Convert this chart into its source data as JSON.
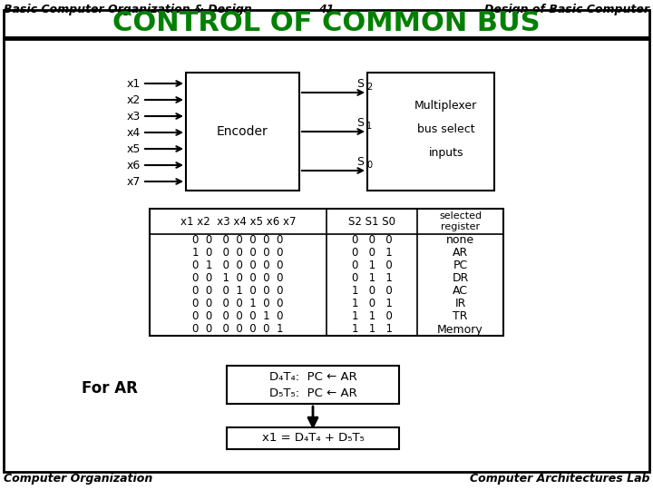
{
  "title_main": "CONTROL OF COMMON BUS",
  "header_left": "Basic Computer Organization & Design",
  "header_center": "41",
  "header_right": "Design of Basic Computer",
  "footer_left": "Computer Organization",
  "footer_right": "Computer Architectures Lab",
  "encoder_label": "Encoder",
  "mux_label1": "Multiplexer",
  "mux_label2": "bus select",
  "mux_label3": "inputs",
  "inputs": [
    "x1",
    "x2",
    "x3",
    "x4",
    "x5",
    "x6",
    "x7"
  ],
  "s_labels": [
    "S",
    "S",
    "S"
  ],
  "s_subs": [
    "2",
    "1",
    "0"
  ],
  "table_col1_header": "x1 x2  x3 x4 x5 x6 x7",
  "table_col2_header": "S2 S1 S0",
  "table_col3_header": "selected\nregister",
  "table_data_col1": [
    "0  0   0  0  0  0  0",
    "1  0   0  0  0  0  0",
    "0  1   0  0  0  0  0",
    "0  0   1  0  0  0  0",
    "0  0   0  1  0  0  0",
    "0  0   0  0  1  0  0",
    "0  0   0  0  0  1  0",
    "0  0   0  0  0  0  1"
  ],
  "table_data_col2": [
    "0   0   0",
    "0   0   1",
    "0   1   0",
    "0   1   1",
    "1   0   0",
    "1   0   1",
    "1   1   0",
    "1   1   1"
  ],
  "table_data_col3": [
    "none",
    "AR",
    "PC",
    "DR",
    "AC",
    "IR",
    "TR",
    "Memory"
  ],
  "for_ar_label": "For AR",
  "box1_line1": "D₄T₄:  PC ← AR",
  "box1_line2": "D₅T₅:  PC ← AR",
  "box2_text": "x1 = D₄T₄ + D₅T₅",
  "bg_color": "#ffffff",
  "title_color": "#008000",
  "title_fontsize": 22,
  "header_fontsize": 9,
  "footer_fontsize": 9
}
